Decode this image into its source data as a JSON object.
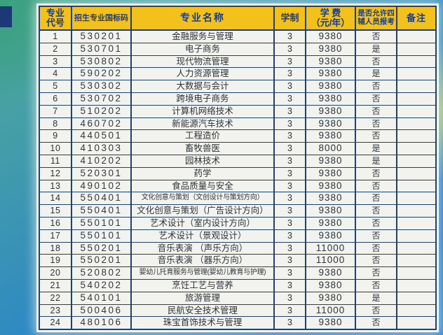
{
  "colors": {
    "header_bg": "#f2c11c",
    "header_text": "#1e3d7d",
    "table_border": "#23406d",
    "cell_bg": "#f2f3ef",
    "background_teal": "#3fa08c",
    "background_blue": "#1e74c6",
    "background_yellow_green": "#bacb60",
    "corner_block_navy": "#1c3876"
  },
  "table": {
    "columns": [
      {
        "key": "no",
        "header_lines": [
          "专业",
          "代号"
        ]
      },
      {
        "key": "code",
        "header_lines": [
          "招生专业国标码"
        ]
      },
      {
        "key": "name",
        "header_lines": [
          "专业名称"
        ]
      },
      {
        "key": "years",
        "header_lines": [
          "学制"
        ]
      },
      {
        "key": "fee",
        "header_lines": [
          "学 费",
          "（元/年）"
        ]
      },
      {
        "key": "allowed",
        "header_lines": [
          "是否允许四",
          "辅人员报考"
        ]
      },
      {
        "key": "remark",
        "header_lines": [
          "备注"
        ]
      }
    ],
    "rows": [
      {
        "no": "1",
        "code": "530201",
        "name": "金融服务与管理",
        "years": "3",
        "fee": "9380",
        "allowed": "否",
        "remark": ""
      },
      {
        "no": "2",
        "code": "530701",
        "name": "电子商务",
        "years": "3",
        "fee": "9380",
        "allowed": "是",
        "remark": ""
      },
      {
        "no": "3",
        "code": "530802",
        "name": "现代物流管理",
        "years": "3",
        "fee": "9380",
        "allowed": "否",
        "remark": ""
      },
      {
        "no": "4",
        "code": "590202",
        "name": "人力资源管理",
        "years": "3",
        "fee": "9380",
        "allowed": "是",
        "remark": ""
      },
      {
        "no": "5",
        "code": "530302",
        "name": "大数据与会计",
        "years": "3",
        "fee": "9380",
        "allowed": "否",
        "remark": ""
      },
      {
        "no": "6",
        "code": "530702",
        "name": "跨境电子商务",
        "years": "3",
        "fee": "9380",
        "allowed": "否",
        "remark": ""
      },
      {
        "no": "7",
        "code": "510202",
        "name": "计算机网络技术",
        "years": "3",
        "fee": "9380",
        "allowed": "否",
        "remark": ""
      },
      {
        "no": "8",
        "code": "460702",
        "name": "新能源汽车技术",
        "years": "3",
        "fee": "9380",
        "allowed": "否",
        "remark": ""
      },
      {
        "no": "9",
        "code": "440501",
        "name": "工程造价",
        "years": "3",
        "fee": "9380",
        "allowed": "否",
        "remark": ""
      },
      {
        "no": "10",
        "code": "410303",
        "name": "畜牧兽医",
        "years": "3",
        "fee": "8000",
        "allowed": "是",
        "remark": ""
      },
      {
        "no": "11",
        "code": "410202",
        "name": "园林技术",
        "years": "3",
        "fee": "9380",
        "allowed": "是",
        "remark": ""
      },
      {
        "no": "12",
        "code": "520301",
        "name": "药学",
        "years": "3",
        "fee": "9380",
        "allowed": "否",
        "remark": ""
      },
      {
        "no": "13",
        "code": "490102",
        "name": "食品质量与安全",
        "years": "3",
        "fee": "9380",
        "allowed": "否",
        "remark": ""
      },
      {
        "no": "14",
        "code": "550401",
        "name": "文化创意与策划（文创设计与策划方向）",
        "years": "3",
        "fee": "9380",
        "allowed": "否",
        "remark": ""
      },
      {
        "no": "15",
        "code": "550401",
        "name": "文化创意与策划（广告设计方向）",
        "years": "3",
        "fee": "9380",
        "allowed": "否",
        "remark": ""
      },
      {
        "no": "16",
        "code": "550101",
        "name": "艺术设计（室内设计方向）",
        "years": "3",
        "fee": "9380",
        "allowed": "否",
        "remark": ""
      },
      {
        "no": "17",
        "code": "550101",
        "name": "艺术设计（景观设计）",
        "years": "3",
        "fee": "9380",
        "allowed": "否",
        "remark": ""
      },
      {
        "no": "18",
        "code": "550201",
        "name": "音乐表演 （声乐方向）",
        "years": "3",
        "fee": "11000",
        "allowed": "否",
        "remark": ""
      },
      {
        "no": "19",
        "code": "550201",
        "name": "音乐表演 （器乐方向）",
        "years": "3",
        "fee": "11000",
        "allowed": "否",
        "remark": ""
      },
      {
        "no": "20",
        "code": "520802",
        "name": "婴幼儿托育服务与管理(婴幼儿教育与护理)",
        "years": "3",
        "fee": "9380",
        "allowed": "否",
        "remark": ""
      },
      {
        "no": "21",
        "code": "540202",
        "name": "烹饪工艺与营养",
        "years": "3",
        "fee": "9380",
        "allowed": "否",
        "remark": ""
      },
      {
        "no": "22",
        "code": "540101",
        "name": "旅游管理",
        "years": "3",
        "fee": "9380",
        "allowed": "是",
        "remark": ""
      },
      {
        "no": "23",
        "code": "500406",
        "name": "民航安全技术管理",
        "years": "3",
        "fee": "11000",
        "allowed": "否",
        "remark": ""
      },
      {
        "no": "24",
        "code": "480106",
        "name": "珠宝首饰技术与管理",
        "years": "3",
        "fee": "9380",
        "allowed": "否",
        "remark": ""
      }
    ]
  }
}
